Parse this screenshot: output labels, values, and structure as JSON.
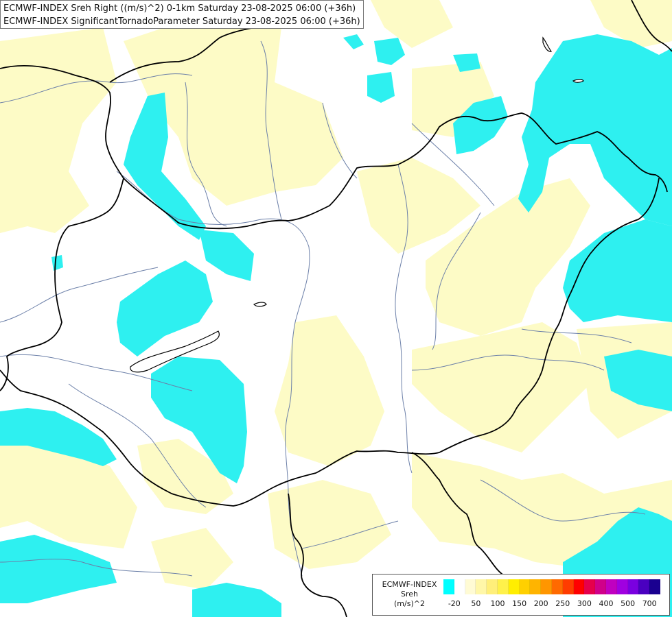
{
  "header": {
    "line1": "ECMWF-INDEX Sreh Right ((m/s)^2) 0-1km Saturday 23-08-2025 06:00 (+36h)",
    "line2": "ECMWF-INDEX SignificantTornadoParameter Saturday 23-08-2025 06:00 (+36h)"
  },
  "legend": {
    "title_line1": "ECMWF-INDEX",
    "title_line2": "Sreh",
    "title_line3": "(m/s)^2",
    "swatch_colors": [
      "#00ffff",
      "#ffffff",
      "#fffbd4",
      "#fff7a8",
      "#ffef7a",
      "#fff14a",
      "#ffee00",
      "#ffd000",
      "#ffb400",
      "#ff9600",
      "#ff6a00",
      "#ff3c00",
      "#ff0000",
      "#e6004c",
      "#d0008a",
      "#c000c0",
      "#a000e0",
      "#7a00e0",
      "#4a00c0",
      "#1a0090"
    ],
    "tick_labels": [
      "-20",
      "50",
      "100",
      "150",
      "200",
      "250",
      "300",
      "400",
      "500",
      "700"
    ]
  },
  "colors": {
    "cyan": "#2ef0f0",
    "pale_yellow": "#fdfbc6",
    "border": "#000000",
    "river": "#6b7fa8"
  }
}
